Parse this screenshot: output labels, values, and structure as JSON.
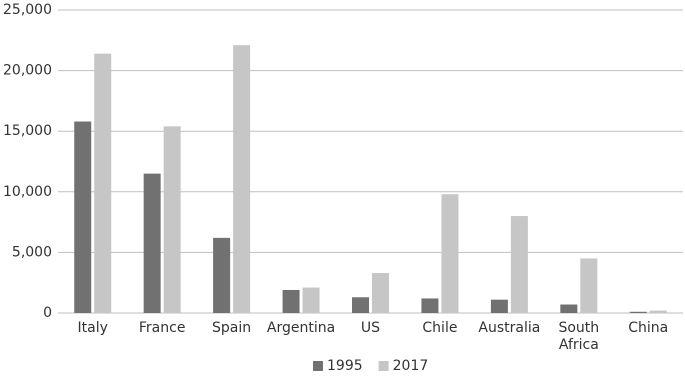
{
  "chart_data": {
    "type": "bar",
    "categories": [
      "Italy",
      "France",
      "Spain",
      "Argentina",
      "US",
      "Chile",
      "Australia",
      "South Africa",
      "China"
    ],
    "series": [
      {
        "name": "1995",
        "color": "#717171",
        "values": [
          15800,
          11500,
          6200,
          1900,
          1300,
          1200,
          1100,
          700,
          100
        ]
      },
      {
        "name": "2017",
        "color": "#c6c6c6",
        "values": [
          21400,
          15400,
          22100,
          2100,
          3300,
          9800,
          8000,
          4500,
          200
        ]
      }
    ],
    "ylim": [
      0,
      25000
    ],
    "yticks": [
      0,
      {
        "value": 5000,
        "label": "5,000"
      },
      {
        "value": 10000,
        "label": "10,000"
      },
      {
        "value": 15000,
        "label": "15,000"
      },
      {
        "value": 20000,
        "label": "20,000"
      },
      {
        "value": 25000,
        "label": "25,000"
      }
    ],
    "grid": true,
    "legend": "bottom"
  }
}
